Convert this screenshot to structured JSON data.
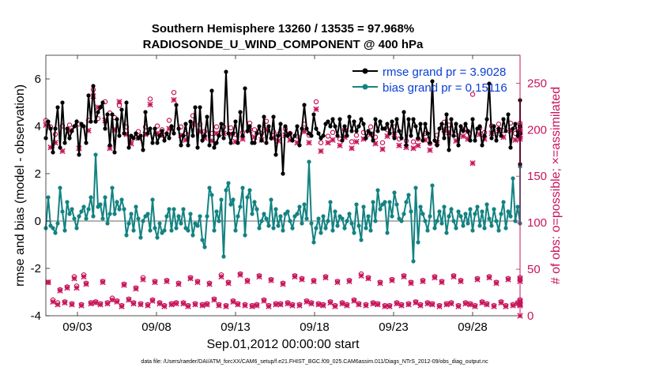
{
  "chart_data": {
    "type": "line",
    "title": "Southern Hemisphere 13260 / 13535 = 97.968%",
    "subtitle": "RADIOSONDE_U_WIND_COMPONENT @ 400 hPa",
    "xlabel": "Sep.01,2012 00:00:00 start",
    "ylabel": "rmse and bias (model - observation)",
    "ylabel_right": "# of obs: o=possible; ×=assimilated",
    "footer": "data file: /Users/raeder/DAI/ATM_forcXX/CAM6_setup/f.e21.FHIST_BGC.f09_025.CAM6assim.011/Diags_NTrS_2012-09/obs_diag_output.nc",
    "xlim": [
      1,
      31
    ],
    "ylim": [
      -4,
      7
    ],
    "ylim_right": [
      0,
      280
    ],
    "x_ticks": [
      3,
      8,
      13,
      18,
      23,
      28
    ],
    "x_tick_labels": [
      "09/03",
      "09/08",
      "09/13",
      "09/18",
      "09/23",
      "09/28"
    ],
    "y_ticks": [
      -4,
      -2,
      0,
      2,
      4,
      6
    ],
    "y_tick_labels": [
      "-4",
      "-2",
      "0",
      "2",
      "4",
      "6"
    ],
    "y_ticks_right": [
      0,
      50,
      100,
      150,
      200,
      250
    ],
    "y_tick_labels_right": [
      "0",
      "50",
      "100",
      "150",
      "200",
      "250"
    ],
    "grid": false,
    "legend_position": "top-right",
    "colors": {
      "rmse": "#000000",
      "bias": "#138282",
      "obs": "#c8145a",
      "legend_text": "#0a3ed6",
      "zero_line": "#b4b4b4"
    },
    "series": [
      {
        "name": "rmse grand pr = 3.9028",
        "axis": "left",
        "values": [
          3.5,
          4.2,
          3.9,
          2.9,
          3.9,
          4.8,
          3.1,
          5.0,
          3.3,
          3.9,
          3.5,
          3.8,
          4.0,
          4.2,
          2.8,
          4.1,
          4.0,
          3.3,
          5.3,
          4.2,
          5.7,
          4.2,
          4.6,
          4.8,
          5.0,
          3.9,
          4.5,
          3.2,
          4.5,
          2.9,
          4.3,
          3.6,
          4.7,
          3.7,
          5.0,
          3.1,
          3.6,
          3.5,
          3.7,
          3.5,
          3.6,
          3.0,
          4.6,
          3.7,
          3.9,
          3.3,
          3.9,
          3.3,
          3.6,
          3.8,
          3.4,
          3.7,
          3.5,
          4.0,
          3.7,
          4.9,
          3.9,
          3.2,
          3.6,
          4.1,
          3.2,
          4.2,
          3.6,
          4.8,
          3.1,
          4.8,
          3.4,
          3.6,
          4.4,
          3.2,
          5.5,
          3.1,
          3.3,
          3.6,
          4.1,
          3.5,
          6.3,
          3.7,
          3.3,
          3.7,
          4.2,
          3.3,
          4.6,
          3.6,
          5.6,
          3.8,
          4.0,
          3.3,
          3.3,
          3.7,
          4.0,
          3.4,
          4.4,
          3.3,
          4.0,
          3.5,
          4.4,
          2.8,
          3.6,
          4.1,
          2.0,
          4.0,
          3.6,
          3.7,
          3.4,
          3.6,
          4.0,
          3.2,
          3.9,
          4.9,
          3.9,
          3.7,
          3.6,
          4.5,
          3.9,
          3.7,
          3.5,
          3.6,
          4.1,
          4.2,
          4.0,
          4.3,
          4.0,
          3.6,
          4.3,
          3.4,
          4.0,
          3.6,
          4.4,
          3.8,
          4.2,
          3.8,
          4.0,
          4.3,
          4.1,
          3.5,
          3.8,
          3.7,
          3.4,
          4.3,
          3.8,
          4.2,
          3.9,
          3.9,
          4.1,
          3.7,
          4.2,
          3.5,
          4.3,
          3.8,
          3.5,
          4.6,
          3.2,
          4.3,
          3.6,
          4.3,
          4.0,
          3.5,
          4.1,
          3.4,
          4.1,
          3.7,
          3.3,
          5.9,
          3.4,
          3.2,
          3.9,
          4.1,
          3.5,
          4.5,
          3.0,
          4.3,
          3.6,
          4.1,
          3.2,
          4.0,
          3.8,
          4.1,
          3.8,
          3.4,
          4.3,
          3.4,
          3.9,
          4.0,
          3.2,
          3.6,
          4.3,
          5.8,
          3.5,
          4.0,
          3.4,
          3.9,
          3.6,
          4.3,
          3.8,
          4.5,
          3.1,
          3.9,
          4.1,
          3.6,
          4.0,
          2.4,
          3.7,
          5.1
        ]
      },
      {
        "name": "bias grand pr = 0.15116",
        "axis": "left",
        "values": [
          -0.3,
          1.0,
          -0.2,
          -0.3,
          -0.5,
          -0.1,
          1.4,
          0.4,
          -0.4,
          0.8,
          0.3,
          0.5,
          0.1,
          -0.3,
          0.2,
          0.4,
          0.6,
          0.1,
          0.5,
          1.0,
          0.2,
          2.8,
          0.6,
          0.7,
          0.1,
          1.0,
          -0.1,
          0.3,
          1.4,
          0.3,
          0.8,
          0.5,
          0.9,
          0.5,
          -0.6,
          -0.1,
          0.3,
          -0.4,
          0.6,
          0.1,
          -0.7,
          0.0,
          0.2,
          0.3,
          -0.4,
          0.9,
          -0.3,
          -0.7,
          -0.1,
          -0.5,
          -0.4,
          0.2,
          0.5,
          -0.4,
          0.5,
          -0.3,
          0.2,
          -0.1,
          0.5,
          -0.3,
          -0.4,
          0.3,
          -0.6,
          -0.1,
          -0.2,
          0.2,
          -0.8,
          -1.1,
          0.2,
          1.4,
          1.1,
          -0.4,
          0.4,
          0.0,
          0.9,
          -1.5,
          1.3,
          1.6,
          0.7,
          0.9,
          -0.4,
          0.2,
          0.6,
          1.4,
          -0.6,
          1.0,
          1.3,
          0.3,
          0.8,
          0.5,
          -0.3,
          0.0,
          0.3,
          0.1,
          -0.2,
          0.9,
          -0.3,
          0.5,
          -0.2,
          0.2,
          -0.4,
          0.3,
          0.4,
          0.0,
          -0.3,
          0.2,
          0.3,
          0.6,
          -0.1,
          0.7,
          0.1,
          2.5,
          -0.1,
          -0.9,
          -0.3,
          0.1,
          -0.5,
          0.2,
          -0.3,
          0.0,
          0.8,
          -0.4,
          0.4,
          -0.2,
          0.2,
          0.1,
          -0.3,
          0.0,
          0.3,
          -0.1,
          -0.5,
          0.7,
          -0.2,
          -0.8,
          0.6,
          -0.3,
          0.2,
          -0.4,
          0.8,
          0.0,
          1.3,
          0.5,
          0.7,
          0.8,
          -0.5,
          0.8,
          0.2,
          1.2,
          0.7,
          0.1,
          0.0,
          0.3,
          0.8,
          1.1,
          0.4,
          -1.7,
          1.4,
          -0.9,
          0.6,
          0.3,
          0.0,
          -0.4,
          0.2,
          1.5,
          -0.3,
          0.0,
          0.4,
          -0.1,
          0.6,
          -0.5,
          0.2,
          0.5,
          0.0,
          -0.3,
          0.4,
          0.2,
          -0.2,
          0.3,
          -0.1,
          0.5,
          -0.4,
          0.3,
          0.6,
          -0.2,
          0.4,
          -0.3,
          0.7,
          0.1,
          -0.2,
          0.5,
          0.0,
          -0.4,
          0.3,
          0.8,
          -0.3,
          0.4,
          0.2,
          1.8,
          0.0,
          0.6,
          -0.1,
          2.3
        ]
      },
      {
        "name": "possible obs",
        "axis": "right",
        "marker": "o",
        "values": [
          210,
          36,
          203,
          17,
          195,
          14,
          28,
          204,
          15,
          31,
          205,
          13,
          42,
          32,
          206,
          12,
          44,
          35,
          210,
          14,
          243,
          15,
          212,
          13,
          37,
          230,
          14,
          218,
          19,
          213,
          16,
          226,
          11,
          34,
          203,
          18,
          190,
          14,
          30,
          198,
          13,
          41,
          203,
          12,
          233,
          17,
          37,
          204,
          14,
          200,
          11,
          38,
          210,
          13,
          240,
          14,
          35,
          203,
          14,
          196,
          11,
          41,
          215,
          13,
          37,
          206,
          12,
          198,
          13,
          35,
          196,
          18,
          203,
          12,
          44,
          203,
          11,
          36,
          202,
          16,
          195,
          13,
          45,
          197,
          12,
          38,
          207,
          11,
          200,
          12,
          43,
          196,
          17,
          209,
          11,
          39,
          198,
          13,
          195,
          13,
          35,
          201,
          14,
          196,
          12,
          43,
          193,
          12,
          40,
          206,
          16,
          194,
          14,
          38,
          230,
          13,
          186,
          12,
          42,
          193,
          15,
          197,
          11,
          37,
          190,
          14,
          200,
          12,
          38,
          187,
          17,
          194,
          13,
          45,
          197,
          12,
          41,
          203,
          14,
          192,
          13,
          36,
          186,
          11,
          200,
          11,
          39,
          203,
          14,
          190,
          12,
          43,
          188,
          13,
          36,
          187,
          15,
          190,
          12,
          38,
          196,
          14,
          185,
          13,
          42,
          194,
          11,
          37,
          208,
          13,
          205,
          14,
          43,
          195,
          11,
          38,
          200,
          14,
          198,
          13,
          238,
          11,
          40,
          202,
          15,
          197,
          13,
          42,
          204,
          11,
          36,
          206,
          15,
          199,
          11,
          40,
          207,
          12,
          196,
          14,
          38,
          205,
          17,
          200,
          12,
          41,
          197,
          14,
          207,
          13,
          17
        ]
      },
      {
        "name": "assimilated obs",
        "axis": "right",
        "marker": "x",
        "values": [
          205,
          36,
          181,
          15,
          186,
          12,
          27,
          177,
          14,
          30,
          199,
          12,
          40,
          30,
          180,
          11,
          42,
          34,
          199,
          13,
          236,
          14,
          224,
          12,
          36,
          210,
          13,
          180,
          17,
          200,
          15,
          230,
          10,
          33,
          195,
          17,
          185,
          13,
          29,
          191,
          12,
          39,
          195,
          11,
          227,
          16,
          36,
          196,
          13,
          194,
          10,
          37,
          201,
          12,
          232,
          13,
          34,
          194,
          13,
          189,
          10,
          40,
          206,
          12,
          36,
          198,
          11,
          191,
          12,
          34,
          188,
          17,
          196,
          11,
          42,
          196,
          10,
          35,
          195,
          15,
          187,
          12,
          44,
          190,
          11,
          37,
          199,
          10,
          192,
          11,
          42,
          189,
          16,
          200,
          10,
          38,
          191,
          12,
          188,
          12,
          34,
          194,
          13,
          189,
          11,
          42,
          186,
          11,
          39,
          198,
          15,
          186,
          13,
          37,
          222,
          12,
          177,
          11,
          41,
          186,
          14,
          189,
          10,
          36,
          183,
          13,
          192,
          11,
          37,
          180,
          16,
          187,
          12,
          43,
          190,
          11,
          40,
          195,
          13,
          185,
          12,
          35,
          179,
          10,
          193,
          10,
          38,
          195,
          13,
          183,
          11,
          42,
          181,
          12,
          35,
          180,
          14,
          183,
          11,
          37,
          189,
          13,
          178,
          12,
          41,
          186,
          10,
          36,
          200,
          12,
          197,
          13,
          42,
          188,
          10,
          37,
          193,
          13,
          190,
          12,
          164,
          10,
          39,
          195,
          14,
          190,
          12,
          41,
          196,
          10,
          35,
          199,
          14,
          192,
          10,
          39,
          199,
          11,
          189,
          13,
          37,
          197,
          16,
          193,
          11,
          40,
          190,
          13,
          200,
          12,
          0
        ]
      }
    ],
    "x_step_days": 0.15
  }
}
